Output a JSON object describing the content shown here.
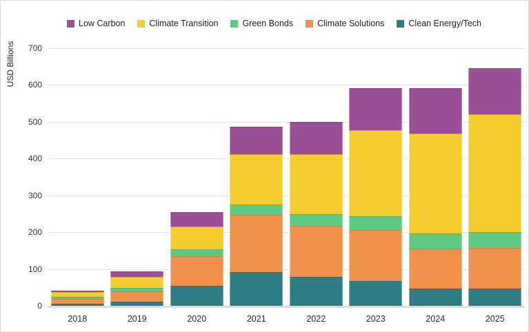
{
  "chart_data": {
    "type": "bar",
    "stacked": true,
    "title": "",
    "ylabel": "USD Billions",
    "xlabel": "",
    "ylim": [
      0,
      700
    ],
    "ytick_step": 100,
    "grid": true,
    "legend_position": "top",
    "categories": [
      "2018",
      "2019",
      "2020",
      "2021",
      "2022",
      "2023",
      "2024",
      "2025"
    ],
    "series": [
      {
        "name": "Clean Energy/Tech",
        "color": "#2F7E86",
        "values": [
          5,
          11,
          55,
          92,
          78,
          68,
          46,
          46
        ]
      },
      {
        "name": "Climate Solutions",
        "color": "#F0924E",
        "values": [
          14,
          29,
          80,
          155,
          140,
          137,
          110,
          111
        ]
      },
      {
        "name": "Green Bonds",
        "color": "#5DC983",
        "values": [
          6,
          8,
          18,
          28,
          30,
          38,
          41,
          43
        ]
      },
      {
        "name": "Climate Transition",
        "color": "#F5CD30",
        "values": [
          12,
          30,
          62,
          137,
          163,
          235,
          270,
          320
        ]
      },
      {
        "name": "Low Carbon",
        "color": "#9B4F96",
        "values": [
          5,
          16,
          40,
          75,
          89,
          114,
          125,
          125
        ]
      }
    ],
    "legend": [
      "Low Carbon",
      "Climate Transition",
      "Green Bonds",
      "Climate Solutions",
      "Clean Energy/Tech"
    ],
    "totals": [
      42,
      94,
      255,
      487,
      500,
      592,
      592,
      645
    ]
  }
}
